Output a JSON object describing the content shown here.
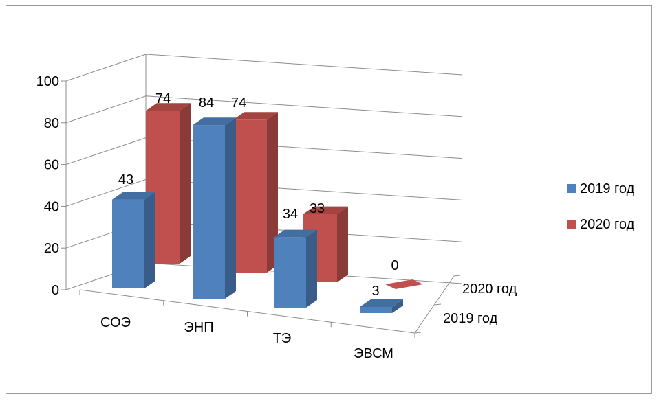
{
  "chart_data": {
    "type": "bar",
    "categories": [
      "СОЭ",
      "ЭНП",
      "ТЭ",
      "ЭВСМ"
    ],
    "series": [
      {
        "name": "2019 год",
        "values": [
          43,
          84,
          34,
          3
        ],
        "color": "#4F81BD"
      },
      {
        "name": "2020 год",
        "values": [
          74,
          74,
          33,
          0
        ],
        "color": "#C0504D"
      }
    ],
    "depth_labels": [
      "2020 год",
      "2019 год"
    ],
    "y_ticks": [
      "0",
      "20",
      "40",
      "60",
      "80",
      "100"
    ],
    "ylim": [
      0,
      100
    ],
    "grid": true,
    "legend": "right"
  }
}
